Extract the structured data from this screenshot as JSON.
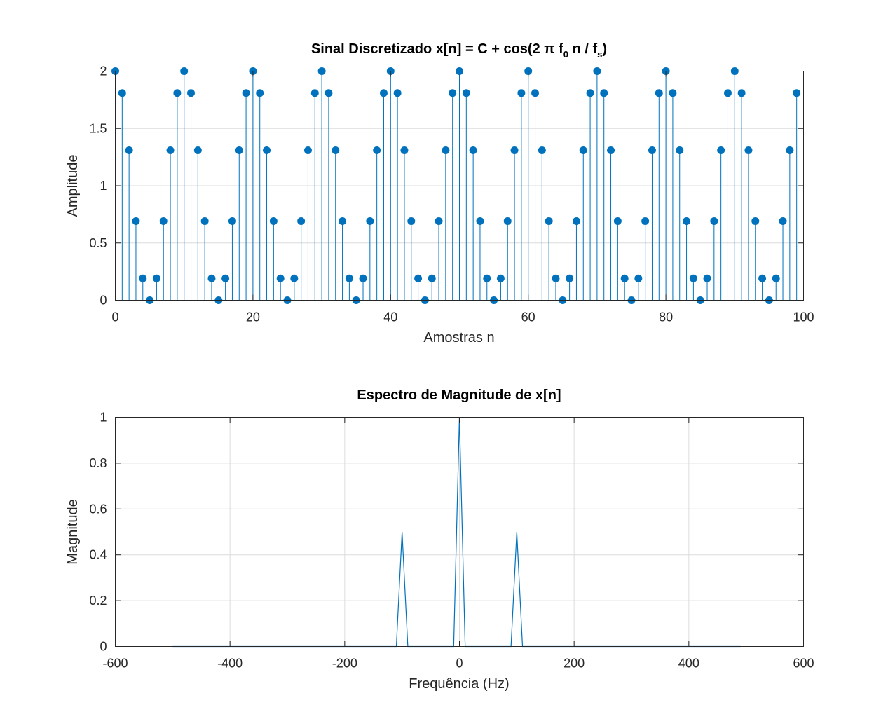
{
  "figure": {
    "background": "#ffffff"
  },
  "chart_data": [
    {
      "type": "stem",
      "title_main": "Sinal Discretizado x[n] = C + cos(2 π f",
      "title_sub0": "0",
      "title_mid": " n / f",
      "title_subs": "s",
      "title_end": ")",
      "xlabel": "Amostras n",
      "ylabel": "Amplitude",
      "xlim": [
        0,
        100
      ],
      "ylim": [
        0,
        2
      ],
      "xticks": [
        0,
        20,
        40,
        60,
        80,
        100
      ],
      "xtick_labels": [
        "0",
        "20",
        "40",
        "60",
        "80",
        "100"
      ],
      "yticks": [
        0,
        0.5,
        1,
        1.5,
        2
      ],
      "ytick_labels": [
        "0",
        "0.5",
        "1",
        "1.5",
        "2"
      ],
      "grid": true,
      "color": "#0072bd",
      "n": [
        0,
        1,
        2,
        3,
        4,
        5,
        6,
        7,
        8,
        9,
        10,
        11,
        12,
        13,
        14,
        15,
        16,
        17,
        18,
        19,
        20,
        21,
        22,
        23,
        24,
        25,
        26,
        27,
        28,
        29,
        30,
        31,
        32,
        33,
        34,
        35,
        36,
        37,
        38,
        39,
        40,
        41,
        42,
        43,
        44,
        45,
        46,
        47,
        48,
        49,
        50,
        51,
        52,
        53,
        54,
        55,
        56,
        57,
        58,
        59,
        60,
        61,
        62,
        63,
        64,
        65,
        66,
        67,
        68,
        69,
        70,
        71,
        72,
        73,
        74,
        75,
        76,
        77,
        78,
        79,
        80,
        81,
        82,
        83,
        84,
        85,
        86,
        87,
        88,
        89,
        90,
        91,
        92,
        93,
        94,
        95,
        96,
        97,
        98,
        99
      ],
      "values": [
        2,
        1.809,
        1.309,
        0.691,
        0.191,
        0,
        0.191,
        0.691,
        1.309,
        1.809,
        2,
        1.809,
        1.309,
        0.691,
        0.191,
        0,
        0.191,
        0.691,
        1.309,
        1.809,
        2,
        1.809,
        1.309,
        0.691,
        0.191,
        0,
        0.191,
        0.691,
        1.309,
        1.809,
        2,
        1.809,
        1.309,
        0.691,
        0.191,
        0,
        0.191,
        0.691,
        1.309,
        1.809,
        2,
        1.809,
        1.309,
        0.691,
        0.191,
        0,
        0.191,
        0.691,
        1.309,
        1.809,
        2,
        1.809,
        1.309,
        0.691,
        0.191,
        0,
        0.191,
        0.691,
        1.309,
        1.809,
        2,
        1.809,
        1.309,
        0.691,
        0.191,
        0,
        0.191,
        0.691,
        1.309,
        1.809,
        2,
        1.809,
        1.309,
        0.691,
        0.191,
        0,
        0.191,
        0.691,
        1.309,
        1.809,
        2,
        1.809,
        1.309,
        0.691,
        0.191,
        0,
        0.191,
        0.691,
        1.309,
        1.809,
        2,
        1.809,
        1.309,
        0.691,
        0.191,
        0,
        0.191,
        0.691,
        1.309,
        1.809
      ]
    },
    {
      "type": "line",
      "title": "Espectro de Magnitude de x[n]",
      "xlabel": "Frequência (Hz)",
      "ylabel": "Magnitude",
      "xlim": [
        -600,
        600
      ],
      "ylim": [
        0,
        1
      ],
      "xticks": [
        -600,
        -400,
        -200,
        0,
        200,
        400,
        600
      ],
      "xtick_labels": [
        "-600",
        "-400",
        "-200",
        "0",
        "200",
        "400",
        "600"
      ],
      "yticks": [
        0,
        0.2,
        0.4,
        0.6,
        0.8,
        1
      ],
      "ytick_labels": [
        "0",
        "0.2",
        "0.4",
        "0.6",
        "0.8",
        "1"
      ],
      "grid": true,
      "color": "#0072bd",
      "x": [
        -500,
        -110,
        -100,
        -90,
        -10,
        0,
        10,
        90,
        100,
        110,
        490
      ],
      "y": [
        0,
        0,
        0.5,
        0,
        0,
        1,
        0,
        0,
        0.5,
        0,
        0
      ]
    }
  ]
}
